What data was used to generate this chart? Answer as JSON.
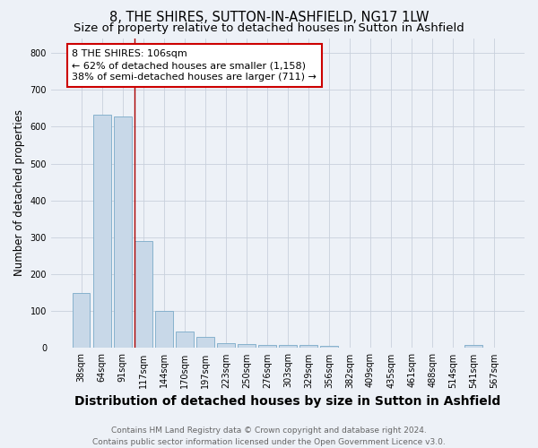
{
  "title": "8, THE SHIRES, SUTTON-IN-ASHFIELD, NG17 1LW",
  "subtitle": "Size of property relative to detached houses in Sutton in Ashfield",
  "xlabel": "Distribution of detached houses by size in Sutton in Ashfield",
  "ylabel": "Number of detached properties",
  "bar_color": "#c8d8e8",
  "bar_edge_color": "#7aaac8",
  "grid_color": "#c8d0dc",
  "background_color": "#edf1f7",
  "vline_color": "#aa0000",
  "annotation_box_color": "#cc0000",
  "annotation_text": "8 THE SHIRES: 106sqm\n← 62% of detached houses are smaller (1,158)\n38% of semi-detached houses are larger (711) →",
  "categories": [
    "38sqm",
    "64sqm",
    "91sqm",
    "117sqm",
    "144sqm",
    "170sqm",
    "197sqm",
    "223sqm",
    "250sqm",
    "276sqm",
    "303sqm",
    "329sqm",
    "356sqm",
    "382sqm",
    "409sqm",
    "435sqm",
    "461sqm",
    "488sqm",
    "514sqm",
    "541sqm",
    "567sqm"
  ],
  "values": [
    150,
    633,
    627,
    290,
    100,
    45,
    30,
    12,
    10,
    8,
    8,
    8,
    5,
    0,
    0,
    0,
    0,
    0,
    0,
    8,
    0
  ],
  "ylim": [
    0,
    840
  ],
  "yticks": [
    0,
    100,
    200,
    300,
    400,
    500,
    600,
    700,
    800
  ],
  "vline_pos": 2.577,
  "footer": "Contains HM Land Registry data © Crown copyright and database right 2024.\nContains public sector information licensed under the Open Government Licence v3.0.",
  "title_fontsize": 10.5,
  "subtitle_fontsize": 9.5,
  "xlabel_fontsize": 10,
  "ylabel_fontsize": 8.5,
  "tick_fontsize": 7,
  "footer_fontsize": 6.5,
  "ann_fontsize": 8
}
